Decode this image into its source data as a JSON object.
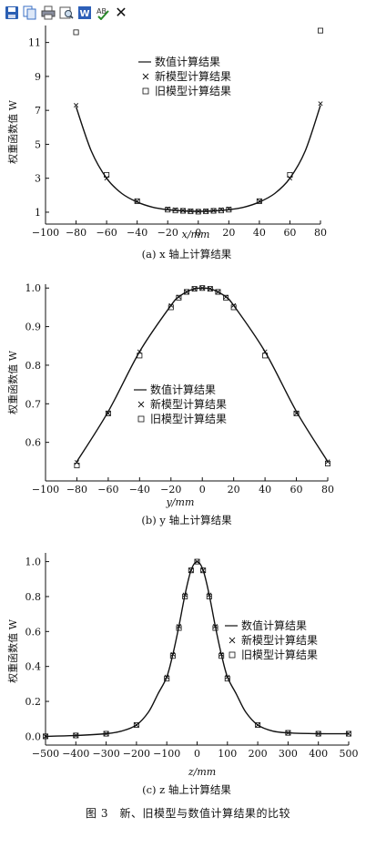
{
  "toolbar": {
    "items": [
      {
        "icon": "save-icon"
      },
      {
        "icon": "copy-icon"
      },
      {
        "icon": "print-icon"
      },
      {
        "icon": "print-preview-icon"
      },
      {
        "icon": "word-icon"
      },
      {
        "icon": "spellcheck-icon"
      },
      {
        "icon": "close-icon",
        "label": "✕"
      }
    ]
  },
  "figure_caption": "图 3　新、旧模型与数值计算结果的比较",
  "chart_data": [
    {
      "type": "line",
      "caption": "(a) x 轴上计算结果",
      "xlabel": "x/mm",
      "ylabel": "权重函数值 W",
      "xlim": [
        -100,
        80
      ],
      "ylim": [
        0.3,
        12
      ],
      "xticks": [
        -100,
        -80,
        -60,
        -40,
        -20,
        0,
        20,
        40,
        60,
        80
      ],
      "yticks": [
        1,
        3,
        5,
        7,
        9,
        11
      ],
      "legend_position": "center",
      "series": [
        {
          "name": "数值计算结果",
          "marker": "line",
          "x": [
            -80,
            -70,
            -60,
            -50,
            -40,
            -30,
            -20,
            -10,
            0,
            10,
            20,
            30,
            40,
            50,
            60,
            70,
            80
          ],
          "y": [
            7.2,
            4.6,
            3.0,
            2.1,
            1.6,
            1.3,
            1.15,
            1.08,
            1.05,
            1.08,
            1.15,
            1.3,
            1.6,
            2.1,
            3.0,
            4.6,
            7.3
          ]
        },
        {
          "name": "新模型计算结果",
          "marker": "x",
          "x": [
            -80,
            -60,
            -40,
            -20,
            -15,
            -10,
            -5,
            0,
            5,
            10,
            15,
            20,
            40,
            60,
            80
          ],
          "y": [
            7.3,
            3.0,
            1.65,
            1.2,
            1.15,
            1.1,
            1.08,
            1.05,
            1.08,
            1.1,
            1.15,
            1.2,
            1.65,
            3.0,
            7.4
          ]
        },
        {
          "name": "旧模型计算结果",
          "marker": "square",
          "x": [
            -80,
            -60,
            -40,
            -20,
            -15,
            -10,
            -5,
            0,
            5,
            10,
            15,
            20,
            40,
            60,
            80
          ],
          "y": [
            11.6,
            3.2,
            1.65,
            1.15,
            1.1,
            1.08,
            1.05,
            1.03,
            1.05,
            1.08,
            1.1,
            1.15,
            1.65,
            3.2,
            11.7
          ]
        }
      ]
    },
    {
      "type": "line",
      "caption": "(b) y 轴上计算结果",
      "xlabel": "y/mm",
      "ylabel": "权重函数值 W",
      "xlim": [
        -100,
        80
      ],
      "ylim": [
        0.5,
        1.01
      ],
      "xticks": [
        -100,
        -80,
        -60,
        -40,
        -20,
        0,
        20,
        40,
        60,
        80
      ],
      "yticks": [
        0.6,
        0.7,
        0.8,
        0.9,
        1.0
      ],
      "legend_position": "lower-center",
      "series": [
        {
          "name": "数值计算结果",
          "marker": "line",
          "x": [
            -80,
            -60,
            -40,
            -20,
            -15,
            -10,
            -5,
            0,
            5,
            10,
            15,
            20,
            40,
            60,
            80
          ],
          "y": [
            0.55,
            0.68,
            0.835,
            0.955,
            0.977,
            0.99,
            0.998,
            1.0,
            0.998,
            0.99,
            0.977,
            0.955,
            0.835,
            0.68,
            0.55
          ]
        },
        {
          "name": "新模型计算结果",
          "marker": "x",
          "x": [
            -80,
            -60,
            -40,
            -20,
            -15,
            -10,
            -5,
            0,
            5,
            10,
            15,
            20,
            40,
            60,
            80
          ],
          "y": [
            0.548,
            0.675,
            0.835,
            0.955,
            0.977,
            0.99,
            0.998,
            1.0,
            0.998,
            0.99,
            0.977,
            0.955,
            0.835,
            0.675,
            0.55
          ]
        },
        {
          "name": "旧模型计算结果",
          "marker": "square",
          "x": [
            -80,
            -60,
            -40,
            -20,
            -15,
            -10,
            -5,
            0,
            5,
            10,
            15,
            20,
            40,
            60,
            80
          ],
          "y": [
            0.54,
            0.675,
            0.825,
            0.95,
            0.975,
            0.99,
            0.998,
            1.0,
            0.998,
            0.99,
            0.975,
            0.95,
            0.825,
            0.675,
            0.545
          ]
        }
      ]
    },
    {
      "type": "line",
      "caption": "(c) z 轴上计算结果",
      "xlabel": "z/mm",
      "ylabel": "权重函数值 W",
      "xlim": [
        -500,
        500
      ],
      "ylim": [
        -0.05,
        1.05
      ],
      "xticks": [
        -500,
        -400,
        -300,
        -200,
        -100,
        0,
        100,
        200,
        300,
        400,
        500
      ],
      "yticks": [
        0,
        0.2,
        0.4,
        0.6,
        0.8,
        1.0
      ],
      "legend_position": "center-right",
      "series": [
        {
          "name": "数值计算结果",
          "marker": "line",
          "x": [
            -500,
            -400,
            -300,
            -250,
            -200,
            -160,
            -130,
            -100,
            -80,
            -60,
            -40,
            -20,
            0,
            20,
            40,
            60,
            80,
            100,
            130,
            160,
            200,
            250,
            300,
            400,
            500
          ],
          "y": [
            0.0,
            0.005,
            0.015,
            0.03,
            0.065,
            0.14,
            0.24,
            0.34,
            0.47,
            0.63,
            0.81,
            0.95,
            1.0,
            0.95,
            0.81,
            0.63,
            0.47,
            0.34,
            0.24,
            0.14,
            0.065,
            0.03,
            0.02,
            0.015,
            0.015
          ]
        },
        {
          "name": "新模型计算结果",
          "marker": "x",
          "x": [
            -500,
            -400,
            -300,
            -200,
            -100,
            -80,
            -60,
            -40,
            -20,
            0,
            20,
            40,
            60,
            80,
            100,
            200,
            300,
            400,
            500
          ],
          "y": [
            0.0,
            0.005,
            0.015,
            0.065,
            0.34,
            0.47,
            0.63,
            0.81,
            0.95,
            1.0,
            0.95,
            0.81,
            0.63,
            0.47,
            0.34,
            0.065,
            0.02,
            0.015,
            0.015
          ]
        },
        {
          "name": "旧模型计算结果",
          "marker": "square",
          "x": [
            -500,
            -400,
            -300,
            -200,
            -100,
            -80,
            -60,
            -40,
            -20,
            0,
            20,
            40,
            60,
            80,
            100,
            200,
            300,
            400,
            500
          ],
          "y": [
            0.0,
            0.005,
            0.015,
            0.065,
            0.33,
            0.46,
            0.62,
            0.8,
            0.95,
            1.0,
            0.95,
            0.8,
            0.62,
            0.46,
            0.33,
            0.065,
            0.02,
            0.015,
            0.015
          ]
        }
      ]
    }
  ]
}
